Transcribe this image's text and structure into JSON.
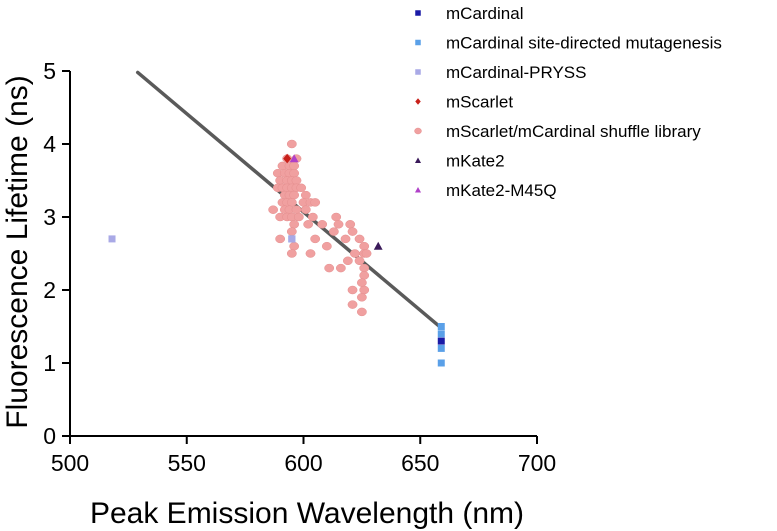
{
  "chart_data": {
    "type": "scatter",
    "xlabel": "Peak Emission Wavelength (nm)",
    "ylabel": "Fluorescence Lifetime (ns)",
    "xlim": [
      500,
      700
    ],
    "ylim": [
      0,
      5
    ],
    "xticks": [
      "500",
      "550",
      "600",
      "650",
      "700"
    ],
    "yticks": [
      "0",
      "1",
      "2",
      "3",
      "4",
      "5"
    ],
    "grid": false,
    "legend_position": "top-right",
    "trendline": {
      "x": [
        529,
        659
      ],
      "y": [
        4.98,
        1.48
      ],
      "color": "#5a5a5a"
    },
    "series": [
      {
        "name": "mCardinal",
        "marker": "square",
        "color": "#1a1aa6",
        "points": [
          [
            659,
            1.3
          ]
        ]
      },
      {
        "name": "mCardinal site-directed mutagenesis",
        "marker": "square",
        "color": "#5aa0e8",
        "points": [
          [
            659,
            1.5
          ],
          [
            659,
            1.4
          ],
          [
            659,
            1.2
          ],
          [
            659,
            1.0
          ],
          [
            595,
            2.7
          ]
        ]
      },
      {
        "name": "mCardinal-PRYSS",
        "marker": "square",
        "color": "#a9a9e6",
        "points": [
          [
            518,
            2.7
          ],
          [
            595,
            2.7
          ]
        ]
      },
      {
        "name": "mScarlet",
        "marker": "diamond",
        "color": "#c8201a",
        "points": [
          [
            593,
            3.8
          ]
        ]
      },
      {
        "name": "mScarlet/mCardinal shuffle library",
        "marker": "circle",
        "color": "#f0a0a0",
        "points": [
          [
            595,
            4.0
          ],
          [
            593,
            3.8
          ],
          [
            597,
            3.8
          ],
          [
            591,
            3.7
          ],
          [
            594,
            3.7
          ],
          [
            596,
            3.7
          ],
          [
            589,
            3.6
          ],
          [
            592,
            3.6
          ],
          [
            594,
            3.6
          ],
          [
            596,
            3.6
          ],
          [
            590,
            3.5
          ],
          [
            593,
            3.5
          ],
          [
            595,
            3.5
          ],
          [
            597,
            3.5
          ],
          [
            589,
            3.4
          ],
          [
            591,
            3.4
          ],
          [
            593,
            3.4
          ],
          [
            595,
            3.4
          ],
          [
            597,
            3.4
          ],
          [
            599,
            3.4
          ],
          [
            592,
            3.3
          ],
          [
            594,
            3.3
          ],
          [
            596,
            3.3
          ],
          [
            601,
            3.3
          ],
          [
            591,
            3.2
          ],
          [
            593,
            3.2
          ],
          [
            595,
            3.2
          ],
          [
            600,
            3.2
          ],
          [
            603,
            3.2
          ],
          [
            605,
            3.2
          ],
          [
            587,
            3.1
          ],
          [
            592,
            3.1
          ],
          [
            594,
            3.1
          ],
          [
            597,
            3.1
          ],
          [
            601,
            3.1
          ],
          [
            590,
            3.0
          ],
          [
            593,
            3.0
          ],
          [
            595,
            3.0
          ],
          [
            598,
            3.0
          ],
          [
            604,
            3.0
          ],
          [
            614,
            3.0
          ],
          [
            596,
            2.9
          ],
          [
            602,
            2.9
          ],
          [
            608,
            2.9
          ],
          [
            615,
            2.9
          ],
          [
            620,
            2.9
          ],
          [
            595,
            2.8
          ],
          [
            613,
            2.8
          ],
          [
            621,
            2.8
          ],
          [
            590,
            2.7
          ],
          [
            605,
            2.7
          ],
          [
            618,
            2.7
          ],
          [
            624,
            2.7
          ],
          [
            596,
            2.6
          ],
          [
            610,
            2.6
          ],
          [
            626,
            2.6
          ],
          [
            595,
            2.5
          ],
          [
            603,
            2.5
          ],
          [
            622,
            2.5
          ],
          [
            626,
            2.5
          ],
          [
            627,
            2.5
          ],
          [
            619,
            2.4
          ],
          [
            624,
            2.4
          ],
          [
            611,
            2.3
          ],
          [
            616,
            2.3
          ],
          [
            626,
            2.3
          ],
          [
            626,
            2.2
          ],
          [
            625,
            2.1
          ],
          [
            621,
            2.0
          ],
          [
            626,
            2.0
          ],
          [
            625,
            1.9
          ],
          [
            621,
            1.8
          ],
          [
            625,
            1.7
          ]
        ]
      },
      {
        "name": "mKate2",
        "marker": "triangle",
        "color": "#3a1a5a",
        "points": [
          [
            632,
            2.6
          ]
        ]
      },
      {
        "name": "mKate2-M45Q",
        "marker": "triangle",
        "color": "#b040c8",
        "points": [
          [
            596,
            3.8
          ]
        ]
      }
    ]
  }
}
